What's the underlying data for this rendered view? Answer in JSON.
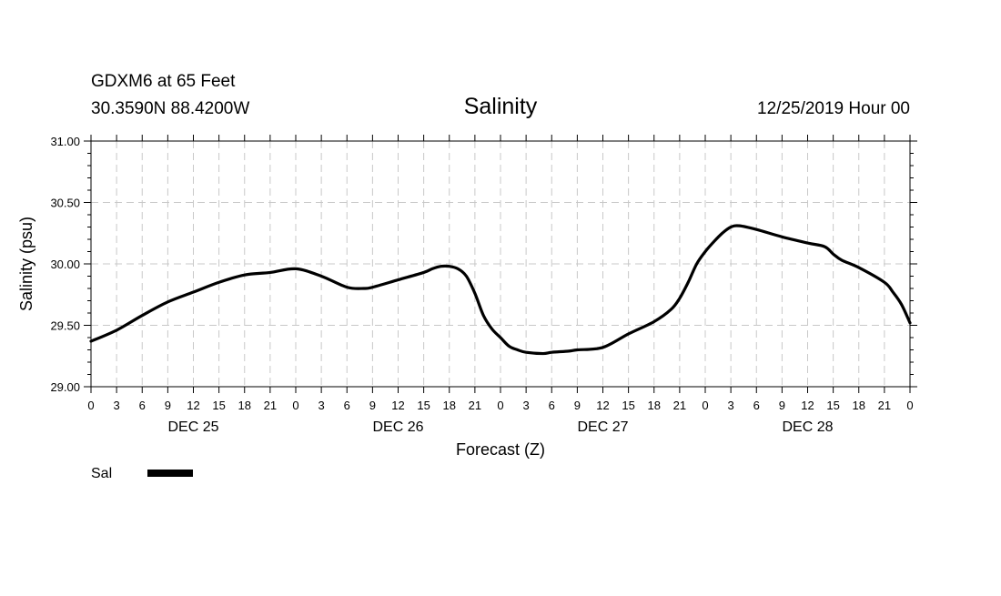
{
  "header": {
    "station": "GDXM6 at 65 Feet",
    "location": "30.3590N 88.4200W",
    "title": "Salinity",
    "issued": "12/25/2019 Hour 00"
  },
  "legend": {
    "label": "Sal",
    "color": "#000000"
  },
  "chart_data": {
    "type": "line",
    "title": "Salinity",
    "xlabel": "Forecast (Z)",
    "ylabel": "Salinity (psu)",
    "xlim": [
      0,
      96
    ],
    "ylim": [
      29.0,
      31.0
    ],
    "yticks": [
      "29.00",
      "29.50",
      "30.00",
      "30.50",
      "31.00"
    ],
    "xticks": [
      "0",
      "3",
      "6",
      "9",
      "12",
      "15",
      "18",
      "21",
      "0",
      "3",
      "6",
      "9",
      "12",
      "15",
      "18",
      "21",
      "0",
      "3",
      "6",
      "9",
      "12",
      "15",
      "18",
      "21",
      "0",
      "3",
      "6",
      "9",
      "12",
      "15",
      "18",
      "21",
      "0"
    ],
    "day_labels": [
      {
        "label": "DEC 25",
        "hour": 12
      },
      {
        "label": "DEC 26",
        "hour": 36
      },
      {
        "label": "DEC 27",
        "hour": 60
      },
      {
        "label": "DEC 28",
        "hour": 84
      }
    ],
    "grid": true,
    "legend_position": "bottom-left",
    "series": [
      {
        "name": "Sal",
        "color": "#000000",
        "x": [
          0,
          3,
          6,
          9,
          12,
          15,
          18,
          21,
          24,
          27,
          30,
          32,
          33,
          36,
          39,
          40,
          41,
          42,
          43,
          44,
          45,
          46,
          47,
          48,
          49,
          50,
          51,
          53,
          54,
          56,
          57,
          60,
          63,
          66,
          68,
          69,
          70,
          71,
          72,
          73,
          74,
          75,
          76,
          78,
          81,
          84,
          86,
          87,
          88,
          90,
          93,
          94,
          95,
          96
        ],
        "y": [
          29.37,
          29.46,
          29.58,
          29.69,
          29.77,
          29.85,
          29.91,
          29.93,
          29.96,
          29.9,
          29.81,
          29.8,
          29.81,
          29.87,
          29.93,
          29.96,
          29.98,
          29.98,
          29.96,
          29.9,
          29.76,
          29.58,
          29.47,
          29.4,
          29.33,
          29.3,
          29.28,
          29.27,
          29.28,
          29.29,
          29.3,
          29.32,
          29.43,
          29.53,
          29.63,
          29.72,
          29.85,
          30.0,
          30.1,
          30.18,
          30.25,
          30.3,
          30.31,
          30.28,
          30.22,
          30.17,
          30.14,
          30.08,
          30.03,
          29.97,
          29.85,
          29.77,
          29.67,
          29.52
        ]
      }
    ]
  }
}
